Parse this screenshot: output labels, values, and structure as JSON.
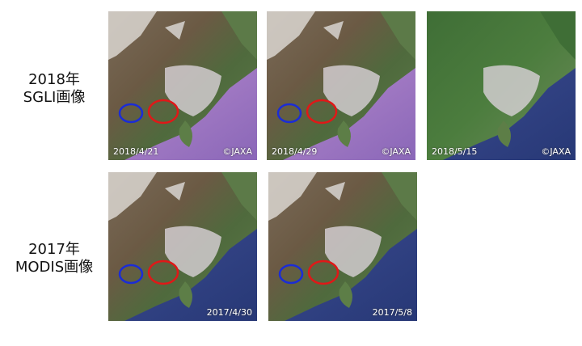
{
  "rows": [
    {
      "label": [
        "2018年",
        "SGLI画像"
      ],
      "images": [
        {
          "date": "2018/4/21",
          "credit": "©JAXA"
        },
        {
          "date": "2018/4/29",
          "credit": "©JAXA"
        },
        {
          "date": "2018/5/15",
          "credit": "©JAXA"
        }
      ]
    },
    {
      "label": [
        "2017年",
        "MODIS画像"
      ],
      "images": [
        {
          "date": "2017/4/30"
        },
        {
          "date": "2017/5/8"
        }
      ]
    }
  ]
}
